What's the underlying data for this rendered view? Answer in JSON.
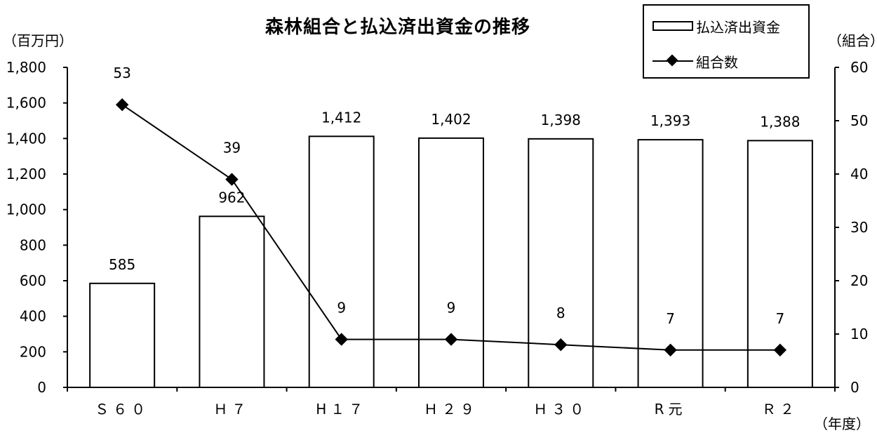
{
  "title": "森林組合と払込済出資金の推移",
  "units": {
    "left": "（百万円）",
    "right": "（組合）",
    "x": "（年度）"
  },
  "legend": {
    "bar_label": "払込済出資金",
    "line_label": "組合数"
  },
  "chart_data": {
    "type": "bar",
    "title": "森林組合と払込済出資金の推移",
    "categories": [
      "Ｓ６０",
      "Ｈ７",
      "H１７",
      "Ｈ２９",
      "Ｈ３０",
      "R元",
      "Ｒ２"
    ],
    "series": [
      {
        "name": "払込済出資金",
        "type": "bar",
        "axis": "left",
        "values": [
          585,
          962,
          1412,
          1402,
          1398,
          1393,
          1388
        ],
        "labels": [
          "585",
          "962",
          "1,412",
          "1,402",
          "1,398",
          "1,393",
          "1,388"
        ]
      },
      {
        "name": "組合数",
        "type": "line",
        "axis": "right",
        "marker": "diamond",
        "values": [
          53,
          39,
          9,
          9,
          8,
          7,
          7
        ],
        "labels": [
          "53",
          "39",
          "9",
          "9",
          "8",
          "7",
          "7"
        ]
      }
    ],
    "y_left": {
      "label": "（百万円）",
      "range": [
        0,
        1800
      ],
      "ticks": [
        "0",
        "200",
        "400",
        "600",
        "800",
        "1,000",
        "1,200",
        "1,400",
        "1,600",
        "1,800"
      ]
    },
    "y_right": {
      "label": "（組合）",
      "range": [
        0,
        60
      ],
      "ticks": [
        "0",
        "10",
        "20",
        "30",
        "40",
        "50",
        "60"
      ]
    },
    "xlabel": "（年度）",
    "grid": false,
    "legend_position": "top-right",
    "colors": {
      "bar_fill": "#ffffff",
      "bar_stroke": "#000000",
      "line": "#000000"
    }
  }
}
